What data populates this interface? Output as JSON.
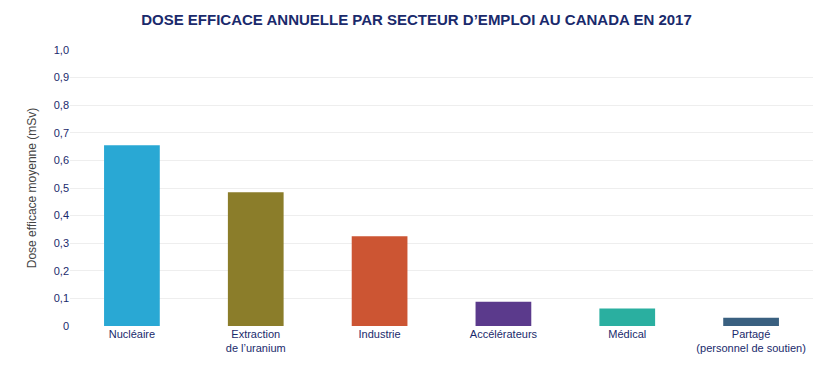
{
  "chart_data": {
    "type": "bar",
    "title": "DOSE EFFICACE ANNUELLE PAR SECTEUR D’EMPLOI AU CANADA EN 2017",
    "ylabel": "Dose efficace moyenne (mSv)",
    "categories": [
      "Nucléaire",
      "Extraction\nde l’uranium",
      "Industrie",
      "Accélérateurs",
      "Médical",
      "Partagé\n(personnel de soutien)"
    ],
    "values": [
      0.655,
      0.485,
      0.325,
      0.088,
      0.063,
      0.03
    ],
    "colors": [
      "#29a8d4",
      "#8b7d2a",
      "#cc5533",
      "#5b3a8c",
      "#2aafa0",
      "#3a6080"
    ],
    "ylim": [
      0,
      1.0
    ],
    "yticks": [
      0,
      {
        "value": 0.1,
        "label": "0,1"
      },
      {
        "value": 0.2,
        "label": "0,2"
      },
      {
        "value": 0.3,
        "label": "0,3"
      },
      {
        "value": 0.4,
        "label": "0,4"
      },
      {
        "value": 0.5,
        "label": "0,5"
      },
      {
        "value": 0.6,
        "label": "0,6"
      },
      {
        "value": 0.7,
        "label": "0,7"
      },
      {
        "value": 0.8,
        "label": "0,8"
      },
      {
        "value": 0.9,
        "label": "0,9"
      },
      {
        "value": 1.0,
        "label": "1,0"
      }
    ],
    "grid": true
  }
}
